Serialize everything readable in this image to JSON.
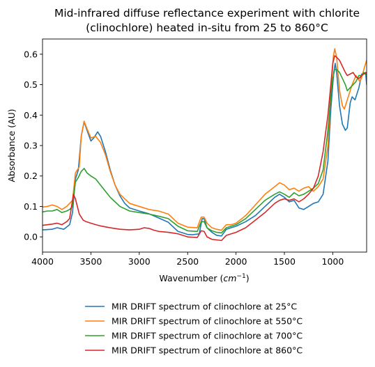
{
  "chart_data": {
    "type": "line",
    "title_lines": [
      "Mid-infrared diffuse reflectance experiment with chlorite",
      "(clinochlore) heated in-situ from 25 to 860°C"
    ],
    "xlabel_prefix": "Wavenumber (",
    "xlabel_unit": "cm",
    "xlabel_exp": "−1",
    "xlabel_suffix": ")",
    "ylabel": "Absorbance (AU)",
    "xlim": [
      4000,
      650
    ],
    "ylim": [
      -0.05,
      0.65
    ],
    "xticks": [
      4000,
      3500,
      3000,
      2500,
      2000,
      1500,
      1000
    ],
    "yticks": [
      0.0,
      0.1,
      0.2,
      0.3,
      0.4,
      0.5,
      0.6
    ],
    "ytick_labels": [
      "0.0",
      "0.1",
      "0.2",
      "0.3",
      "0.4",
      "0.5",
      "0.6"
    ],
    "grid": false,
    "legend_position": "below",
    "series": [
      {
        "name": "MIR DRIFT spectrum of clinochlore at 25°C",
        "color": "#1f77b4",
        "points": [
          [
            4000,
            0.023
          ],
          [
            3900,
            0.025
          ],
          [
            3850,
            0.03
          ],
          [
            3780,
            0.025
          ],
          [
            3720,
            0.04
          ],
          [
            3690,
            0.08
          ],
          [
            3660,
            0.19
          ],
          [
            3630,
            0.22
          ],
          [
            3600,
            0.33
          ],
          [
            3570,
            0.378
          ],
          [
            3540,
            0.35
          ],
          [
            3500,
            0.315
          ],
          [
            3470,
            0.325
          ],
          [
            3430,
            0.345
          ],
          [
            3400,
            0.33
          ],
          [
            3350,
            0.28
          ],
          [
            3300,
            0.22
          ],
          [
            3250,
            0.17
          ],
          [
            3200,
            0.135
          ],
          [
            3150,
            0.11
          ],
          [
            3100,
            0.095
          ],
          [
            3000,
            0.085
          ],
          [
            2900,
            0.076
          ],
          [
            2800,
            0.062
          ],
          [
            2700,
            0.048
          ],
          [
            2600,
            0.018
          ],
          [
            2500,
            0.008
          ],
          [
            2450,
            0.007
          ],
          [
            2380,
            0.01
          ],
          [
            2350,
            0.06
          ],
          [
            2330,
            0.06
          ],
          [
            2300,
            0.03
          ],
          [
            2250,
            0.015
          ],
          [
            2200,
            0.005
          ],
          [
            2150,
            0.003
          ],
          [
            2100,
            0.025
          ],
          [
            2050,
            0.03
          ],
          [
            2000,
            0.035
          ],
          [
            1900,
            0.05
          ],
          [
            1800,
            0.07
          ],
          [
            1700,
            0.1
          ],
          [
            1600,
            0.13
          ],
          [
            1550,
            0.14
          ],
          [
            1500,
            0.13
          ],
          [
            1450,
            0.115
          ],
          [
            1400,
            0.12
          ],
          [
            1350,
            0.095
          ],
          [
            1300,
            0.09
          ],
          [
            1250,
            0.1
          ],
          [
            1200,
            0.11
          ],
          [
            1150,
            0.115
          ],
          [
            1100,
            0.14
          ],
          [
            1050,
            0.25
          ],
          [
            1020,
            0.42
          ],
          [
            990,
            0.54
          ],
          [
            975,
            0.57
          ],
          [
            960,
            0.54
          ],
          [
            930,
            0.43
          ],
          [
            900,
            0.37
          ],
          [
            870,
            0.35
          ],
          [
            850,
            0.358
          ],
          [
            820,
            0.44
          ],
          [
            800,
            0.46
          ],
          [
            770,
            0.45
          ],
          [
            730,
            0.49
          ],
          [
            700,
            0.535
          ],
          [
            660,
            0.54
          ],
          [
            650,
            0.5
          ]
        ]
      },
      {
        "name": "MIR DRIFT spectrum of clinochlore at 550°C",
        "color": "#ff7f0e",
        "points": [
          [
            4000,
            0.098
          ],
          [
            3950,
            0.1
          ],
          [
            3900,
            0.105
          ],
          [
            3850,
            0.1
          ],
          [
            3800,
            0.09
          ],
          [
            3750,
            0.1
          ],
          [
            3720,
            0.11
          ],
          [
            3690,
            0.12
          ],
          [
            3660,
            0.21
          ],
          [
            3620,
            0.23
          ],
          [
            3600,
            0.33
          ],
          [
            3570,
            0.38
          ],
          [
            3540,
            0.355
          ],
          [
            3500,
            0.325
          ],
          [
            3450,
            0.33
          ],
          [
            3400,
            0.31
          ],
          [
            3350,
            0.27
          ],
          [
            3300,
            0.215
          ],
          [
            3250,
            0.17
          ],
          [
            3200,
            0.14
          ],
          [
            3100,
            0.11
          ],
          [
            3000,
            0.1
          ],
          [
            2900,
            0.09
          ],
          [
            2800,
            0.085
          ],
          [
            2700,
            0.075
          ],
          [
            2600,
            0.045
          ],
          [
            2500,
            0.032
          ],
          [
            2400,
            0.03
          ],
          [
            2360,
            0.065
          ],
          [
            2330,
            0.065
          ],
          [
            2300,
            0.045
          ],
          [
            2250,
            0.03
          ],
          [
            2200,
            0.025
          ],
          [
            2150,
            0.022
          ],
          [
            2100,
            0.04
          ],
          [
            2050,
            0.04
          ],
          [
            2000,
            0.045
          ],
          [
            1900,
            0.07
          ],
          [
            1800,
            0.105
          ],
          [
            1700,
            0.14
          ],
          [
            1600,
            0.165
          ],
          [
            1550,
            0.178
          ],
          [
            1500,
            0.17
          ],
          [
            1450,
            0.155
          ],
          [
            1400,
            0.16
          ],
          [
            1350,
            0.15
          ],
          [
            1300,
            0.16
          ],
          [
            1250,
            0.165
          ],
          [
            1200,
            0.15
          ],
          [
            1150,
            0.165
          ],
          [
            1100,
            0.19
          ],
          [
            1050,
            0.3
          ],
          [
            1020,
            0.47
          ],
          [
            995,
            0.59
          ],
          [
            980,
            0.618
          ],
          [
            960,
            0.59
          ],
          [
            930,
            0.48
          ],
          [
            900,
            0.43
          ],
          [
            880,
            0.42
          ],
          [
            860,
            0.44
          ],
          [
            830,
            0.47
          ],
          [
            800,
            0.5
          ],
          [
            760,
            0.53
          ],
          [
            720,
            0.51
          ],
          [
            700,
            0.525
          ],
          [
            670,
            0.56
          ],
          [
            650,
            0.58
          ]
        ]
      },
      {
        "name": "MIR DRIFT spectrum of clinochlore at 700°C",
        "color": "#2ca02c",
        "points": [
          [
            4000,
            0.082
          ],
          [
            3950,
            0.085
          ],
          [
            3900,
            0.085
          ],
          [
            3850,
            0.09
          ],
          [
            3800,
            0.08
          ],
          [
            3750,
            0.085
          ],
          [
            3720,
            0.09
          ],
          [
            3690,
            0.1
          ],
          [
            3660,
            0.18
          ],
          [
            3630,
            0.195
          ],
          [
            3600,
            0.215
          ],
          [
            3570,
            0.225
          ],
          [
            3540,
            0.21
          ],
          [
            3500,
            0.2
          ],
          [
            3450,
            0.19
          ],
          [
            3400,
            0.17
          ],
          [
            3350,
            0.15
          ],
          [
            3300,
            0.13
          ],
          [
            3250,
            0.115
          ],
          [
            3200,
            0.1
          ],
          [
            3100,
            0.085
          ],
          [
            3000,
            0.08
          ],
          [
            2900,
            0.075
          ],
          [
            2800,
            0.068
          ],
          [
            2700,
            0.06
          ],
          [
            2600,
            0.035
          ],
          [
            2500,
            0.02
          ],
          [
            2400,
            0.018
          ],
          [
            2360,
            0.05
          ],
          [
            2330,
            0.05
          ],
          [
            2300,
            0.03
          ],
          [
            2250,
            0.02
          ],
          [
            2200,
            0.015
          ],
          [
            2150,
            0.013
          ],
          [
            2100,
            0.03
          ],
          [
            2050,
            0.035
          ],
          [
            2000,
            0.04
          ],
          [
            1900,
            0.06
          ],
          [
            1800,
            0.09
          ],
          [
            1700,
            0.12
          ],
          [
            1600,
            0.14
          ],
          [
            1550,
            0.148
          ],
          [
            1500,
            0.14
          ],
          [
            1450,
            0.13
          ],
          [
            1400,
            0.145
          ],
          [
            1350,
            0.135
          ],
          [
            1300,
            0.14
          ],
          [
            1250,
            0.15
          ],
          [
            1200,
            0.16
          ],
          [
            1150,
            0.175
          ],
          [
            1100,
            0.22
          ],
          [
            1050,
            0.35
          ],
          [
            1020,
            0.46
          ],
          [
            1000,
            0.52
          ],
          [
            980,
            0.55
          ],
          [
            960,
            0.55
          ],
          [
            930,
            0.54
          ],
          [
            900,
            0.52
          ],
          [
            870,
            0.5
          ],
          [
            850,
            0.48
          ],
          [
            820,
            0.49
          ],
          [
            790,
            0.5
          ],
          [
            760,
            0.51
          ],
          [
            730,
            0.53
          ],
          [
            700,
            0.53
          ],
          [
            680,
            0.54
          ],
          [
            650,
            0.53
          ]
        ]
      },
      {
        "name": "MIR DRIFT spectrum of clinochlore at 860°C",
        "color": "#d62728",
        "points": [
          [
            4000,
            0.038
          ],
          [
            3950,
            0.04
          ],
          [
            3900,
            0.042
          ],
          [
            3850,
            0.045
          ],
          [
            3800,
            0.04
          ],
          [
            3750,
            0.05
          ],
          [
            3720,
            0.06
          ],
          [
            3700,
            0.1
          ],
          [
            3680,
            0.14
          ],
          [
            3660,
            0.125
          ],
          [
            3640,
            0.1
          ],
          [
            3620,
            0.075
          ],
          [
            3580,
            0.055
          ],
          [
            3550,
            0.05
          ],
          [
            3500,
            0.045
          ],
          [
            3450,
            0.04
          ],
          [
            3400,
            0.036
          ],
          [
            3300,
            0.03
          ],
          [
            3200,
            0.025
          ],
          [
            3100,
            0.023
          ],
          [
            3000,
            0.025
          ],
          [
            2950,
            0.03
          ],
          [
            2900,
            0.028
          ],
          [
            2850,
            0.022
          ],
          [
            2800,
            0.018
          ],
          [
            2700,
            0.015
          ],
          [
            2600,
            0.01
          ],
          [
            2500,
            0.0
          ],
          [
            2400,
            -0.002
          ],
          [
            2360,
            0.02
          ],
          [
            2330,
            0.018
          ],
          [
            2300,
            0.0
          ],
          [
            2250,
            -0.008
          ],
          [
            2200,
            -0.01
          ],
          [
            2150,
            -0.012
          ],
          [
            2100,
            0.005
          ],
          [
            2050,
            0.01
          ],
          [
            2000,
            0.015
          ],
          [
            1900,
            0.03
          ],
          [
            1800,
            0.055
          ],
          [
            1700,
            0.08
          ],
          [
            1600,
            0.11
          ],
          [
            1550,
            0.12
          ],
          [
            1500,
            0.125
          ],
          [
            1450,
            0.12
          ],
          [
            1400,
            0.125
          ],
          [
            1350,
            0.115
          ],
          [
            1300,
            0.125
          ],
          [
            1250,
            0.14
          ],
          [
            1200,
            0.16
          ],
          [
            1150,
            0.2
          ],
          [
            1100,
            0.28
          ],
          [
            1050,
            0.4
          ],
          [
            1020,
            0.5
          ],
          [
            1000,
            0.57
          ],
          [
            980,
            0.595
          ],
          [
            960,
            0.59
          ],
          [
            930,
            0.58
          ],
          [
            900,
            0.56
          ],
          [
            870,
            0.54
          ],
          [
            850,
            0.53
          ],
          [
            820,
            0.535
          ],
          [
            790,
            0.54
          ],
          [
            760,
            0.525
          ],
          [
            730,
            0.52
          ],
          [
            700,
            0.53
          ],
          [
            680,
            0.535
          ],
          [
            650,
            0.54
          ]
        ]
      }
    ]
  }
}
